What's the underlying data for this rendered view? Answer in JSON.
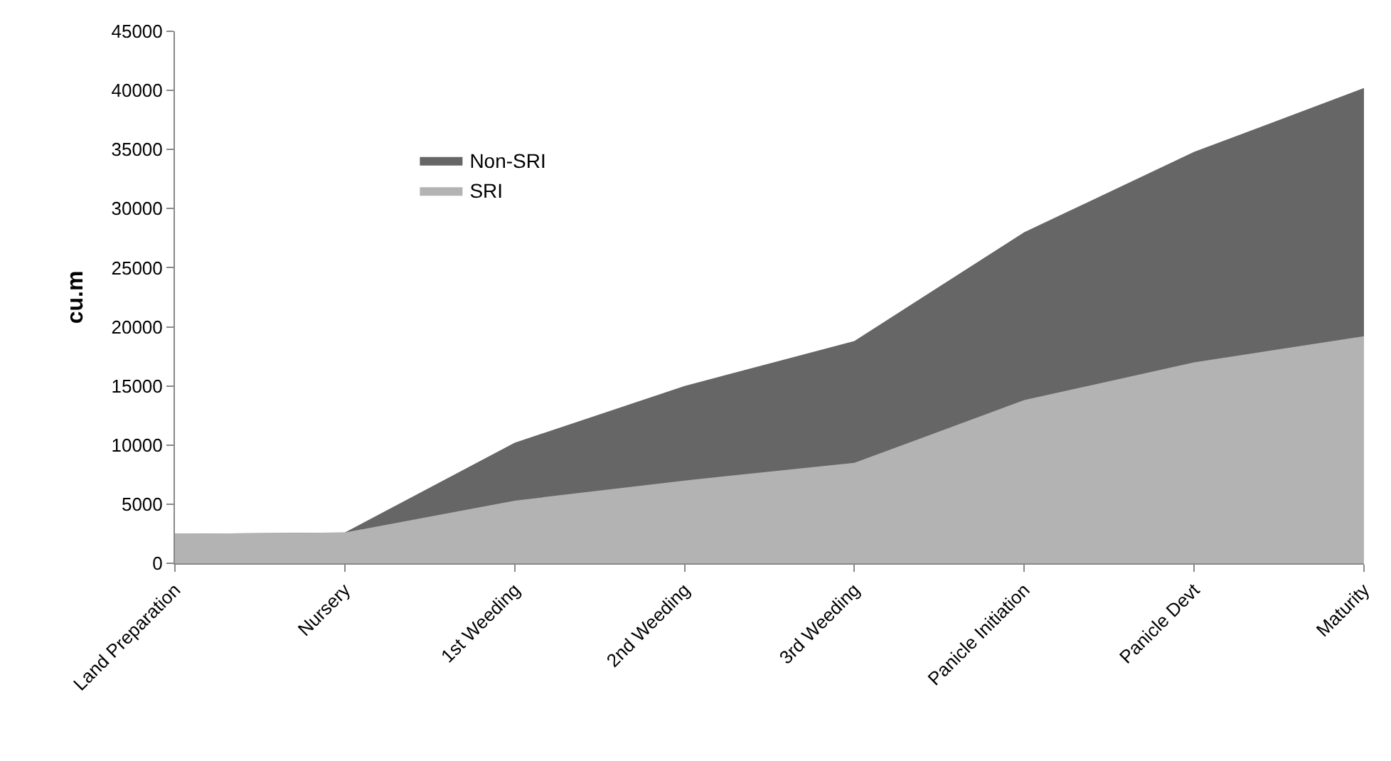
{
  "chart_data": {
    "type": "area",
    "ylabel": "cu.m",
    "categories": [
      "Land Preparation",
      "Nursery",
      "1st Weeding",
      "2nd Weeding",
      "3rd Weeding",
      "Panicle Initiation",
      "Panicle Devt",
      "Maturity"
    ],
    "series": [
      {
        "name": "Non-SRI",
        "color": "#666666",
        "values": [
          2500,
          2600,
          10200,
          15000,
          18800,
          28000,
          34800,
          40200
        ]
      },
      {
        "name": "SRI",
        "color": "#b3b3b3",
        "values": [
          2500,
          2600,
          5300,
          7000,
          8500,
          13800,
          17000,
          19200
        ]
      }
    ],
    "ylim": [
      0,
      45000
    ],
    "yticks": [
      0,
      5000,
      10000,
      15000,
      20000,
      25000,
      30000,
      35000,
      40000,
      45000
    ],
    "legend": "top left"
  }
}
